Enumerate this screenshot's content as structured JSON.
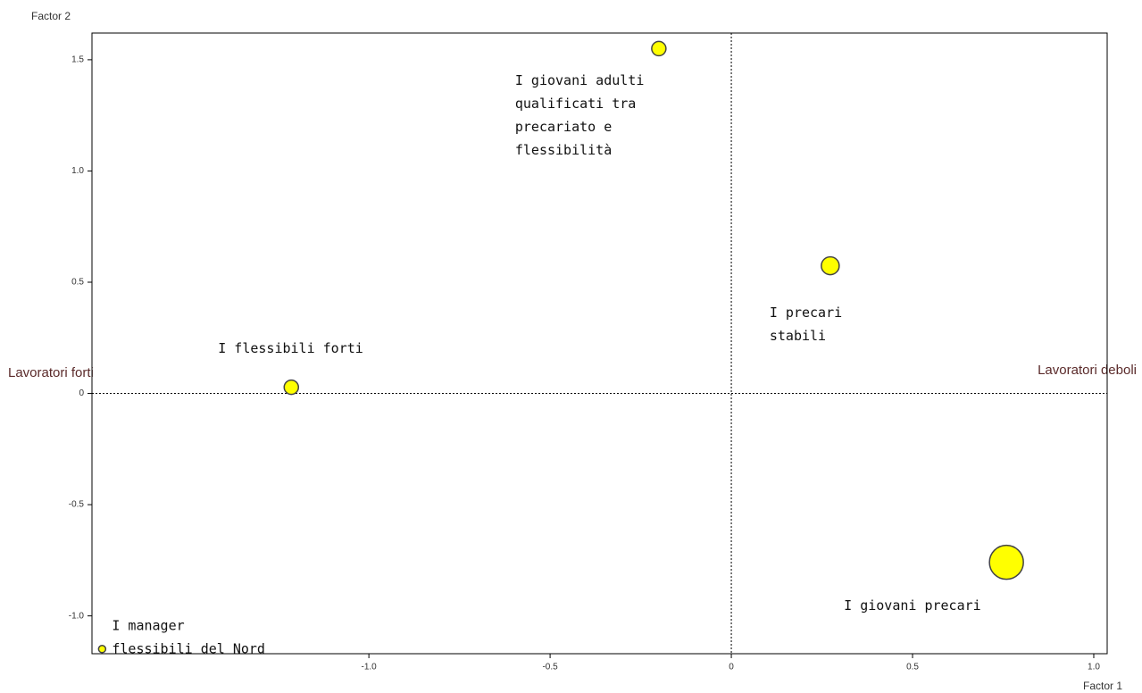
{
  "chart_data": {
    "type": "scatter",
    "x_label": "Factor 1",
    "y_label": "Factor 2",
    "annotations": [
      "Lavoratori forti",
      "Lavoratori deboli"
    ],
    "series": [
      {
        "color": "#ffff00",
        "x": [
          -0.2,
          0.273,
          -1.214,
          0.759,
          -1.736
        ],
        "values": [
          1.55,
          0.574,
          0.028,
          -0.759,
          -1.149
        ],
        "sizes": [
          8,
          10,
          8,
          19,
          4
        ],
        "labels": [
          [
            "I giovani adulti",
            "qualificati tra",
            "precariato e",
            "flessibilità"
          ],
          [
            "I precari",
            "stabili"
          ],
          [
            "I flessibili forti"
          ],
          [
            "I giovani precari"
          ],
          [
            "I manager",
            "flessibili del Nord"
          ]
        ]
      }
    ],
    "xlim": [
      -1.764,
      1.037
    ],
    "ylim": [
      -1.17,
      1.62
    ],
    "xticks": [
      {
        "value": -1.0,
        "label": "-1.0"
      },
      {
        "value": -0.5,
        "label": "-0.5"
      },
      0,
      0.5,
      {
        "value": 1.0,
        "label": "1.0"
      }
    ],
    "yticks": [
      1.5,
      {
        "value": 1.0,
        "label": "1.0"
      },
      0.5,
      0,
      -0.5,
      {
        "value": -1.0,
        "label": "-1.0"
      }
    ],
    "zero_lines": true
  }
}
